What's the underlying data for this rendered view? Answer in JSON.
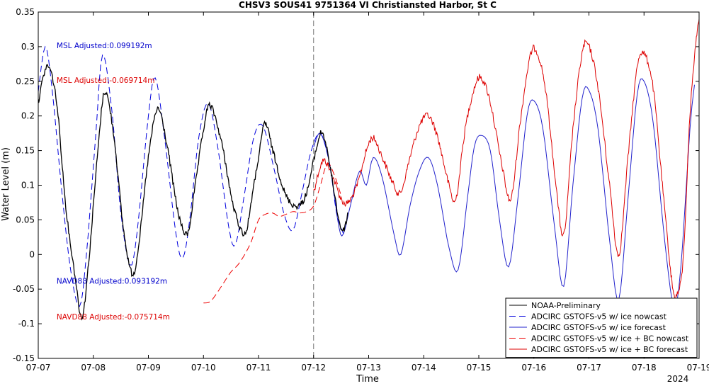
{
  "chart_data": {
    "type": "line",
    "title": "CHSV3 SOUS41 9751364 VI Christiansted Harbor, St C",
    "xlabel": "Time",
    "ylabel": "Water Level (m)",
    "year_label": "2024",
    "xlim": [
      "07-07",
      "07-19"
    ],
    "ylim": [
      -0.15,
      0.35
    ],
    "x_ticks": [
      "07-07",
      "07-08",
      "07-09",
      "07-10",
      "07-11",
      "07-12",
      "07-13",
      "07-14",
      "07-15",
      "07-16",
      "07-17",
      "07-18",
      "07-19"
    ],
    "y_ticks": [
      -0.15,
      -0.1,
      -0.05,
      0,
      0.05,
      0.1,
      0.15,
      0.2,
      0.25,
      0.3,
      0.35
    ],
    "nowcast_forecast_boundary": "07-12",
    "grid": false,
    "legend_position": "bottom-right",
    "annotations": [
      {
        "text": "MSL Adjusted:0.099192m",
        "color": "#0000cc",
        "x": "07-07 08:00",
        "y": 0.298
      },
      {
        "text": "MSL Adjusted:-0.069714m",
        "color": "#dd0000",
        "x": "07-07 08:00",
        "y": 0.248
      },
      {
        "text": "NAVD88 Adjusted:0.093192m",
        "color": "#0000cc",
        "x": "07-07 08:00",
        "y": -0.042
      },
      {
        "text": "NAVD88 Adjusted:-0.075714m",
        "color": "#dd0000",
        "x": "07-07 08:00",
        "y": -0.094
      }
    ],
    "series": [
      {
        "name": "NOAA-Preliminary",
        "color": "#000000",
        "dash": "solid",
        "points": [
          [
            "07-07 00:00",
            0.22
          ],
          [
            "07-07 04:00",
            0.272
          ],
          [
            "07-07 08:00",
            0.22
          ],
          [
            "07-07 12:00",
            0.07
          ],
          [
            "07-07 16:00",
            -0.03
          ],
          [
            "07-07 19:00",
            -0.09
          ],
          [
            "07-07 22:00",
            -0.01
          ],
          [
            "07-08 02:00",
            0.15
          ],
          [
            "07-08 05:00",
            0.235
          ],
          [
            "07-08 09:00",
            0.17
          ],
          [
            "07-08 13:00",
            0.04
          ],
          [
            "07-08 17:00",
            -0.028
          ],
          [
            "07-08 20:00",
            0.02
          ],
          [
            "07-09 00:00",
            0.14
          ],
          [
            "07-09 04:00",
            0.21
          ],
          [
            "07-09 08:00",
            0.16
          ],
          [
            "07-09 13:00",
            0.06
          ],
          [
            "07-09 17:00",
            0.03
          ],
          [
            "07-09 20:00",
            0.09
          ],
          [
            "07-10 00:00",
            0.18
          ],
          [
            "07-10 03:00",
            0.215
          ],
          [
            "07-10 08:00",
            0.16
          ],
          [
            "07-10 13:00",
            0.07
          ],
          [
            "07-10 18:00",
            0.03
          ],
          [
            "07-10 21:00",
            0.08
          ],
          [
            "07-11 01:00",
            0.16
          ],
          [
            "07-11 03:00",
            0.19
          ],
          [
            "07-11 07:00",
            0.14
          ],
          [
            "07-11 12:00",
            0.085
          ],
          [
            "07-11 17:00",
            0.07
          ],
          [
            "07-11 21:00",
            0.09
          ],
          [
            "07-12 01:00",
            0.15
          ],
          [
            "07-12 04:00",
            0.175
          ],
          [
            "07-12 08:00",
            0.11
          ],
          [
            "07-12 11:00",
            0.05
          ],
          [
            "07-12 13:00",
            0.035
          ],
          [
            "07-12 15:00",
            0.06
          ]
        ]
      },
      {
        "name": "ADCIRC GSTOFS-v5 w/ ice nowcast",
        "color": "#0000dd",
        "dash": "dashed",
        "points": [
          [
            "07-07 00:00",
            0.235
          ],
          [
            "07-07 03:00",
            0.3
          ],
          [
            "07-07 06:00",
            0.24
          ],
          [
            "07-07 10:00",
            0.1
          ],
          [
            "07-07 14:00",
            -0.02
          ],
          [
            "07-07 18:00",
            -0.075
          ],
          [
            "07-07 21:00",
            0.0
          ],
          [
            "07-08 01:00",
            0.17
          ],
          [
            "07-08 04:00",
            0.288
          ],
          [
            "07-08 08:00",
            0.21
          ],
          [
            "07-08 12:00",
            0.06
          ],
          [
            "07-08 16:00",
            -0.015
          ],
          [
            "07-08 19:00",
            0.03
          ],
          [
            "07-09 00:00",
            0.2
          ],
          [
            "07-09 03:00",
            0.255
          ],
          [
            "07-09 07:00",
            0.17
          ],
          [
            "07-09 12:00",
            0.03
          ],
          [
            "07-09 15:00",
            -0.005
          ],
          [
            "07-09 18:00",
            0.05
          ],
          [
            "07-09 22:00",
            0.17
          ],
          [
            "07-10 02:00",
            0.218
          ],
          [
            "07-10 06:00",
            0.16
          ],
          [
            "07-10 11:00",
            0.04
          ],
          [
            "07-10 14:00",
            0.015
          ],
          [
            "07-10 18:00",
            0.09
          ],
          [
            "07-10 22:00",
            0.17
          ],
          [
            "07-11 02:00",
            0.185
          ],
          [
            "07-11 07:00",
            0.12
          ],
          [
            "07-11 11:00",
            0.06
          ],
          [
            "07-11 15:00",
            0.035
          ],
          [
            "07-11 19:00",
            0.09
          ],
          [
            "07-11 23:00",
            0.15
          ],
          [
            "07-12 03:00",
            0.175
          ],
          [
            "07-12 07:00",
            0.13
          ],
          [
            "07-12 10:00",
            0.06
          ],
          [
            "07-12 13:00",
            0.03
          ]
        ]
      },
      {
        "name": "ADCIRC GSTOFS-v5 w/ ice forecast",
        "color": "#2222cc",
        "dash": "solid",
        "points": [
          [
            "07-12 00:00",
            0.155
          ],
          [
            "07-12 03:00",
            0.175
          ],
          [
            "07-12 07:00",
            0.13
          ],
          [
            "07-12 11:00",
            0.04
          ],
          [
            "07-12 13:00",
            0.03
          ],
          [
            "07-12 16:00",
            0.07
          ],
          [
            "07-12 20:00",
            0.12
          ],
          [
            "07-12 23:00",
            0.1
          ],
          [
            "07-13 02:00",
            0.14
          ],
          [
            "07-13 06:00",
            0.11
          ],
          [
            "07-13 11:00",
            0.03
          ],
          [
            "07-13 14:00",
            0.0
          ],
          [
            "07-13 18:00",
            0.07
          ],
          [
            "07-13 22:00",
            0.12
          ],
          [
            "07-14 02:00",
            0.14
          ],
          [
            "07-14 06:00",
            0.1
          ],
          [
            "07-14 11:00",
            0.01
          ],
          [
            "07-14 15:00",
            -0.022
          ],
          [
            "07-14 19:00",
            0.08
          ],
          [
            "07-14 22:00",
            0.155
          ],
          [
            "07-15 01:00",
            0.172
          ],
          [
            "07-15 05:00",
            0.15
          ],
          [
            "07-15 09:00",
            0.05
          ],
          [
            "07-15 13:00",
            -0.018
          ],
          [
            "07-15 17:00",
            0.08
          ],
          [
            "07-15 21:00",
            0.2
          ],
          [
            "07-16 00:00",
            0.222
          ],
          [
            "07-16 04:00",
            0.18
          ],
          [
            "07-16 09:00",
            0.04
          ],
          [
            "07-16 13:00",
            -0.046
          ],
          [
            "07-16 17:00",
            0.1
          ],
          [
            "07-16 21:00",
            0.225
          ],
          [
            "07-17 00:00",
            0.237
          ],
          [
            "07-17 04:00",
            0.18
          ],
          [
            "07-17 09:00",
            0.02
          ],
          [
            "07-17 13:00",
            -0.065
          ],
          [
            "07-17 17:00",
            0.08
          ],
          [
            "07-17 21:00",
            0.23
          ],
          [
            "07-18 00:00",
            0.25
          ],
          [
            "07-18 04:00",
            0.19
          ],
          [
            "07-18 09:00",
            0.02
          ],
          [
            "07-18 13:00",
            -0.075
          ],
          [
            "07-18 16:00",
            -0.02
          ],
          [
            "07-18 20:00",
            0.18
          ],
          [
            "07-18 22:00",
            0.245
          ]
        ]
      },
      {
        "name": "ADCIRC GSTOFS-v5 w/ ice + BC nowcast",
        "color": "#ee0000",
        "dash": "dashed",
        "points": [
          [
            "07-10 00:00",
            -0.07
          ],
          [
            "07-10 03:00",
            -0.068
          ],
          [
            "07-10 06:00",
            -0.055
          ],
          [
            "07-10 09:00",
            -0.04
          ],
          [
            "07-10 12:00",
            -0.025
          ],
          [
            "07-10 15:00",
            -0.015
          ],
          [
            "07-10 18:00",
            0.0
          ],
          [
            "07-10 21:00",
            0.02
          ],
          [
            "07-11 00:00",
            0.05
          ],
          [
            "07-11 03:00",
            0.058
          ],
          [
            "07-11 06:00",
            0.06
          ],
          [
            "07-11 09:00",
            0.055
          ],
          [
            "07-11 12:00",
            0.058
          ],
          [
            "07-11 15:00",
            0.062
          ],
          [
            "07-11 18:00",
            0.06
          ],
          [
            "07-11 21:00",
            0.062
          ],
          [
            "07-12 00:00",
            0.07
          ],
          [
            "07-12 03:00",
            0.1
          ],
          [
            "07-12 06:00",
            0.132
          ],
          [
            "07-12 09:00",
            0.115
          ],
          [
            "07-12 12:00",
            0.085
          ]
        ]
      },
      {
        "name": "ADCIRC GSTOFS-v5 w/ ice + BC forecast",
        "color": "#dd0000",
        "dash": "solid",
        "points": [
          [
            "07-12 00:00",
            0.09
          ],
          [
            "07-12 04:00",
            0.135
          ],
          [
            "07-12 08:00",
            0.115
          ],
          [
            "07-12 12:00",
            0.08
          ],
          [
            "07-12 15:00",
            0.075
          ],
          [
            "07-12 19:00",
            0.1
          ],
          [
            "07-12 23:00",
            0.15
          ],
          [
            "07-13 02:00",
            0.168
          ],
          [
            "07-13 06:00",
            0.14
          ],
          [
            "07-13 11:00",
            0.1
          ],
          [
            "07-13 14:00",
            0.09
          ],
          [
            "07-13 18:00",
            0.14
          ],
          [
            "07-13 22:00",
            0.185
          ],
          [
            "07-14 02:00",
            0.2
          ],
          [
            "07-14 06:00",
            0.17
          ],
          [
            "07-14 11:00",
            0.1
          ],
          [
            "07-14 14:00",
            0.08
          ],
          [
            "07-14 18:00",
            0.18
          ],
          [
            "07-14 22:00",
            0.24
          ],
          [
            "07-15 01:00",
            0.255
          ],
          [
            "07-15 05:00",
            0.22
          ],
          [
            "07-15 10:00",
            0.13
          ],
          [
            "07-15 14:00",
            0.08
          ],
          [
            "07-15 18:00",
            0.19
          ],
          [
            "07-15 22:00",
            0.28
          ],
          [
            "07-16 01:00",
            0.295
          ],
          [
            "07-16 05:00",
            0.24
          ],
          [
            "07-16 09:00",
            0.12
          ],
          [
            "07-16 13:00",
            0.028
          ],
          [
            "07-16 17:00",
            0.18
          ],
          [
            "07-16 21:00",
            0.29
          ],
          [
            "07-17 00:00",
            0.3
          ],
          [
            "07-17 04:00",
            0.24
          ],
          [
            "07-17 09:00",
            0.1
          ],
          [
            "07-17 13:00",
            0.0
          ],
          [
            "07-17 17:00",
            0.14
          ],
          [
            "07-17 21:00",
            0.27
          ],
          [
            "07-18 00:00",
            0.29
          ],
          [
            "07-18 04:00",
            0.24
          ],
          [
            "07-18 08:00",
            0.1
          ],
          [
            "07-18 12:00",
            -0.035
          ],
          [
            "07-18 14:00",
            -0.06
          ],
          [
            "07-18 17:00",
            -0.01
          ],
          [
            "07-18 20:00",
            0.2
          ],
          [
            "07-18 23:00",
            0.32
          ],
          [
            "07-19 00:00",
            0.34
          ]
        ]
      }
    ]
  }
}
